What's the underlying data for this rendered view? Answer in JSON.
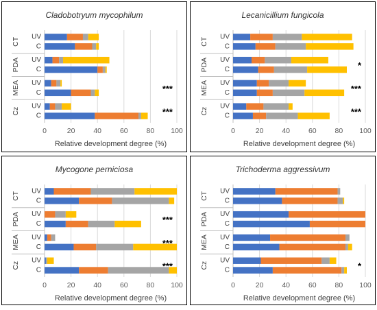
{
  "colors": [
    "#4472C4",
    "#ED7D31",
    "#A5A5A5",
    "#FFC000"
  ],
  "chart_data": [
    {
      "type": "bar",
      "stacked": true,
      "orientation": "horizontal",
      "title": "Cladobotryum mycophilum",
      "xlabel": "Relative development degree (%)",
      "xlim": [
        0,
        100
      ],
      "xticks": [
        "0",
        "20",
        "40",
        "60",
        "80",
        "100"
      ],
      "groups": [
        {
          "label": "CT",
          "significance": "",
          "bars": [
            {
              "label": "UV",
              "values": [
                17,
                12,
                4,
                8
              ]
            },
            {
              "label": "C",
              "values": [
                23,
                13,
                3,
                2
              ]
            }
          ]
        },
        {
          "label": "PDA",
          "significance": "",
          "bars": [
            {
              "label": "UV",
              "values": [
                6,
                5,
                3,
                35
              ]
            },
            {
              "label": "C",
              "values": [
                40,
                4,
                2,
                1
              ]
            }
          ]
        },
        {
          "label": "MEA",
          "significance": "***",
          "bars": [
            {
              "label": "UV",
              "values": [
                5,
                4,
                3,
                1
              ]
            },
            {
              "label": "C",
              "values": [
                20,
                15,
                3,
                3
              ]
            }
          ]
        },
        {
          "label": "Cz",
          "significance": "***",
          "bars": [
            {
              "label": "UV",
              "values": [
                4,
                4,
                5,
                7
              ]
            },
            {
              "label": "C",
              "values": [
                38,
                33,
                2,
                5
              ]
            }
          ]
        }
      ]
    },
    {
      "type": "bar",
      "stacked": true,
      "orientation": "horizontal",
      "title": "Lecanicillium fungicola",
      "xlabel": "Relative development degree (%)",
      "xlim": [
        0,
        100
      ],
      "xticks": [
        "0",
        "20",
        "40",
        "60",
        "80",
        "100"
      ],
      "groups": [
        {
          "label": "CT",
          "significance": "",
          "bars": [
            {
              "label": "UV",
              "values": [
                13,
                17,
                22,
                38
              ]
            },
            {
              "label": "C",
              "values": [
                17,
                15,
                23,
                36
              ]
            }
          ]
        },
        {
          "label": "PDA",
          "significance": "*",
          "bars": [
            {
              "label": "UV",
              "values": [
                14,
                10,
                20,
                28
              ]
            },
            {
              "label": "C",
              "values": [
                19,
                12,
                25,
                30
              ]
            }
          ]
        },
        {
          "label": "MEA",
          "significance": "***",
          "bars": [
            {
              "label": "UV",
              "values": [
                18,
                9,
                15,
                13
              ]
            },
            {
              "label": "C",
              "values": [
                18,
                12,
                24,
                30
              ]
            }
          ]
        },
        {
          "label": "Cz",
          "significance": "***",
          "bars": [
            {
              "label": "UV",
              "values": [
                10,
                13,
                19,
                3
              ]
            },
            {
              "label": "C",
              "values": [
                15,
                10,
                24,
                24
              ]
            }
          ]
        }
      ]
    },
    {
      "type": "bar",
      "stacked": true,
      "orientation": "horizontal",
      "title": "Mycogone perniciosa",
      "xlabel": "Relative development degree (%)",
      "xlim": [
        0,
        100
      ],
      "xticks": [
        "0",
        "20",
        "40",
        "60",
        "80",
        "100"
      ],
      "groups": [
        {
          "label": "CT",
          "significance": "",
          "bars": [
            {
              "label": "UV",
              "values": [
                7,
                28,
                33,
                32
              ]
            },
            {
              "label": "C",
              "values": [
                26,
                25,
                43,
                4
              ]
            }
          ]
        },
        {
          "label": "PDA",
          "significance": "***",
          "bars": [
            {
              "label": "UV",
              "values": [
                0,
                8,
                8,
                8
              ]
            },
            {
              "label": "C",
              "values": [
                16,
                17,
                20,
                20
              ]
            }
          ]
        },
        {
          "label": "MEA",
          "significance": "***",
          "bars": [
            {
              "label": "UV",
              "values": [
                2,
                3,
                3,
                0
              ]
            },
            {
              "label": "C",
              "values": [
                22,
                17,
                28,
                33
              ]
            }
          ]
        },
        {
          "label": "Cz",
          "significance": "***",
          "bars": [
            {
              "label": "UV",
              "values": [
                1,
                0,
                1,
                5
              ]
            },
            {
              "label": "C",
              "values": [
                26,
                22,
                46,
                6
              ]
            }
          ]
        }
      ]
    },
    {
      "type": "bar",
      "stacked": true,
      "orientation": "horizontal",
      "title": "Trichoderma aggressivum",
      "xlabel": "Relative development degree (%)",
      "xlim": [
        0,
        100
      ],
      "xticks": [
        "0",
        "20",
        "40",
        "60",
        "80",
        "100"
      ],
      "groups": [
        {
          "label": "CT",
          "significance": "",
          "bars": [
            {
              "label": "UV",
              "values": [
                32,
                47,
                2,
                0
              ]
            },
            {
              "label": "C",
              "values": [
                37,
                42,
                4,
                1
              ]
            }
          ]
        },
        {
          "label": "PDA",
          "significance": "",
          "bars": [
            {
              "label": "UV",
              "values": [
                42,
                58,
                0,
                0
              ]
            },
            {
              "label": "C",
              "values": [
                58,
                42,
                0,
                0
              ]
            }
          ]
        },
        {
          "label": "MEA",
          "significance": "",
          "bars": [
            {
              "label": "UV",
              "values": [
                28,
                57,
                3,
                0
              ]
            },
            {
              "label": "C",
              "values": [
                35,
                50,
                2,
                3
              ]
            }
          ]
        },
        {
          "label": "Cz",
          "significance": "*",
          "bars": [
            {
              "label": "UV",
              "values": [
                21,
                46,
                6,
                5
              ]
            },
            {
              "label": "C",
              "values": [
                30,
                52,
                2,
                2
              ]
            }
          ]
        }
      ]
    }
  ]
}
